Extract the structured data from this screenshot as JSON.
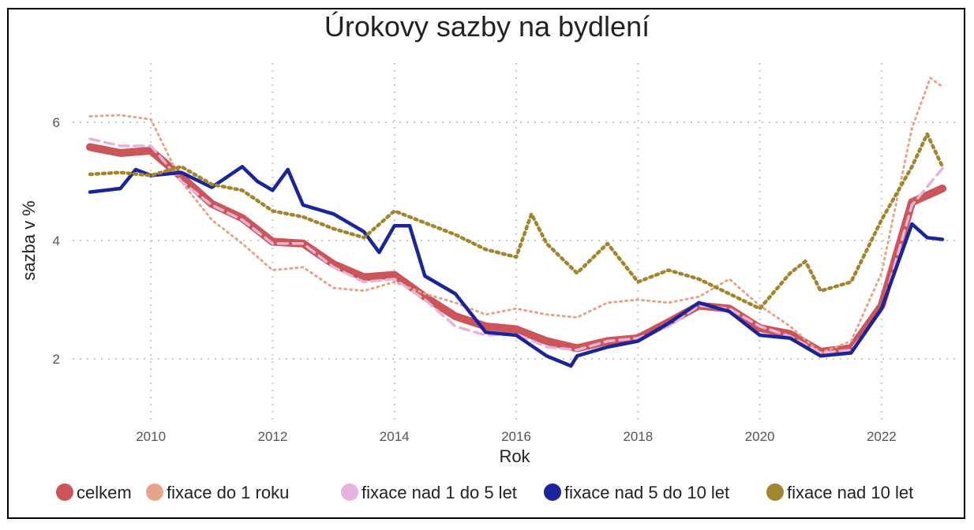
{
  "chart_data": {
    "type": "line",
    "title": "Úrokovy sazby na bydlení",
    "xlabel": "Rok",
    "ylabel": "sazba v %",
    "xlim": [
      2009,
      2023
    ],
    "ylim": [
      0.7,
      7.0
    ],
    "xticks": [
      2010,
      2012,
      2014,
      2016,
      2018,
      2020,
      2022
    ],
    "yticks": [
      2,
      4,
      6
    ],
    "grid": true,
    "legend_position": "bottom",
    "series": [
      {
        "name": "celkem",
        "color": "#cb5558",
        "x": [
          2009,
          2009.5,
          2010,
          2010.5,
          2011,
          2011.5,
          2012,
          2012.5,
          2013,
          2013.5,
          2014,
          2014.5,
          2015,
          2015.5,
          2016,
          2016.5,
          2017,
          2017.5,
          2018,
          2018.5,
          2019,
          2019.5,
          2020,
          2020.5,
          2021,
          2021.5,
          2022,
          2022.5,
          2023
        ],
        "y": [
          5.58,
          5.48,
          5.52,
          5.08,
          4.62,
          4.38,
          3.98,
          3.95,
          3.6,
          3.38,
          3.42,
          3.05,
          2.72,
          2.55,
          2.5,
          2.3,
          2.18,
          2.3,
          2.35,
          2.62,
          2.9,
          2.85,
          2.52,
          2.42,
          2.12,
          2.18,
          2.9,
          4.65,
          4.88
        ]
      },
      {
        "name": "fixace do 1 roku",
        "color": "#e4a58a",
        "x": [
          2009,
          2009.5,
          2010,
          2010.5,
          2011,
          2011.5,
          2012,
          2012.5,
          2013,
          2013.5,
          2014,
          2014.5,
          2015,
          2015.5,
          2016,
          2016.5,
          2017,
          2017.5,
          2018,
          2018.5,
          2019,
          2019.5,
          2020,
          2020.5,
          2021,
          2021.5,
          2022,
          2022.5,
          2022.8,
          2023
        ],
        "y": [
          6.1,
          6.12,
          6.05,
          5.0,
          4.35,
          3.95,
          3.5,
          3.55,
          3.2,
          3.15,
          3.3,
          3.1,
          2.95,
          2.75,
          2.85,
          2.75,
          2.7,
          2.95,
          3.0,
          2.95,
          3.05,
          3.35,
          2.9,
          2.55,
          2.1,
          2.3,
          3.45,
          5.9,
          6.75,
          6.6
        ]
      },
      {
        "name": "fixace nad 1 do 5 let",
        "color": "#e8b3da",
        "x": [
          2009,
          2009.5,
          2010,
          2010.5,
          2011,
          2011.5,
          2012,
          2012.5,
          2013,
          2013.5,
          2014,
          2014.5,
          2015,
          2015.5,
          2016,
          2016.5,
          2017,
          2017.5,
          2018,
          2018.5,
          2019,
          2019.5,
          2020,
          2020.5,
          2021,
          2021.5,
          2022,
          2022.5,
          2023
        ],
        "y": [
          5.72,
          5.6,
          5.6,
          5.0,
          4.6,
          4.35,
          3.95,
          3.95,
          3.55,
          3.3,
          3.35,
          3.0,
          2.55,
          2.4,
          2.42,
          2.2,
          2.15,
          2.3,
          2.35,
          2.55,
          2.9,
          2.85,
          2.55,
          2.38,
          2.1,
          2.15,
          2.82,
          4.6,
          5.22
        ]
      },
      {
        "name": "fixace nad 5 do 10 let",
        "color": "#1a259b",
        "x": [
          2009,
          2009.5,
          2009.75,
          2010,
          2010.5,
          2011,
          2011.5,
          2011.75,
          2012,
          2012.25,
          2012.5,
          2013,
          2013.5,
          2013.75,
          2014,
          2014.25,
          2014.5,
          2015,
          2015.5,
          2016,
          2016.5,
          2016.9,
          2017,
          2017.5,
          2018,
          2018.5,
          2019,
          2019.5,
          2020,
          2020.5,
          2021,
          2021.5,
          2022,
          2022.5,
          2022.75,
          2023
        ],
        "y": [
          4.82,
          4.88,
          5.2,
          5.1,
          5.15,
          4.9,
          5.25,
          5.0,
          4.85,
          5.2,
          4.6,
          4.45,
          4.15,
          3.8,
          4.25,
          4.25,
          3.4,
          3.1,
          2.45,
          2.4,
          2.05,
          1.88,
          2.05,
          2.2,
          2.3,
          2.6,
          2.95,
          2.8,
          2.4,
          2.35,
          2.05,
          2.1,
          2.85,
          4.28,
          4.05,
          4.02
        ]
      },
      {
        "name": "fixace nad 10 let",
        "color": "#a0862c",
        "x": [
          2009,
          2009.5,
          2010,
          2010.5,
          2011,
          2011.5,
          2012,
          2012.5,
          2013,
          2013.5,
          2014,
          2014.5,
          2015,
          2015.5,
          2016,
          2016.25,
          2016.5,
          2017,
          2017.5,
          2018,
          2018.5,
          2019,
          2019.5,
          2020,
          2020.5,
          2020.75,
          2021,
          2021.5,
          2022,
          2022.5,
          2022.75,
          2023
        ],
        "y": [
          5.12,
          5.15,
          5.1,
          5.25,
          4.95,
          4.85,
          4.5,
          4.4,
          4.2,
          4.05,
          4.5,
          4.3,
          4.1,
          3.85,
          3.72,
          4.45,
          3.95,
          3.45,
          3.95,
          3.3,
          3.5,
          3.35,
          3.1,
          2.85,
          3.45,
          3.65,
          3.15,
          3.3,
          4.35,
          5.25,
          5.8,
          5.25
        ]
      }
    ]
  }
}
